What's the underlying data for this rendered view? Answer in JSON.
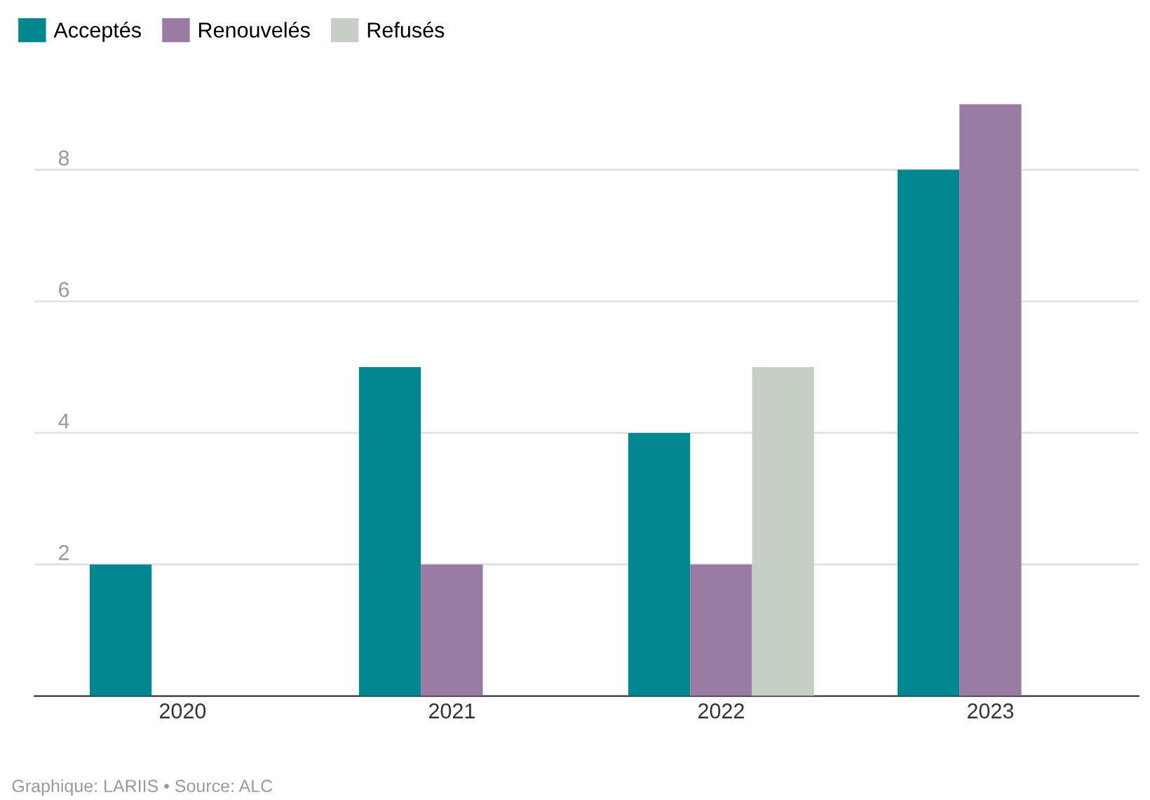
{
  "chart_data": {
    "type": "bar",
    "categories": [
      "2020",
      "2021",
      "2022",
      "2023"
    ],
    "series": [
      {
        "name": "Acceptés",
        "color": "#00878f",
        "values": [
          2,
          5,
          4,
          8
        ]
      },
      {
        "name": "Renouvelés",
        "color": "#9a7ba3",
        "values": [
          null,
          2,
          2,
          9
        ]
      },
      {
        "name": "Refusés",
        "color": "#c5cfc4",
        "values": [
          null,
          null,
          5,
          null
        ]
      }
    ],
    "ylim": [
      0,
      9
    ],
    "yticks": [
      2,
      4,
      6,
      8
    ],
    "grid": "y",
    "legend": "top left",
    "annotations": [
      "Graphique: LARIIS • Source: ALC"
    ]
  }
}
